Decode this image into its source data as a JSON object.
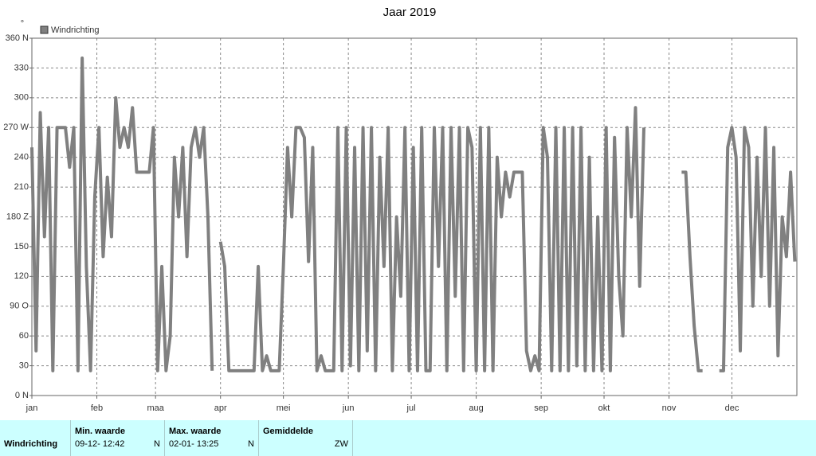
{
  "chart_data": {
    "type": "line",
    "title": "Jaar 2019",
    "ylabel": "°",
    "xlim": [
      0,
      365
    ],
    "ylim": [
      0,
      360
    ],
    "xticks": [
      {
        "value": 0,
        "label": "jan"
      },
      {
        "value": 31,
        "label": "feb"
      },
      {
        "value": 59,
        "label": "maa"
      },
      {
        "value": 90,
        "label": "apr"
      },
      {
        "value": 120,
        "label": "mei"
      },
      {
        "value": 151,
        "label": "jun"
      },
      {
        "value": 181,
        "label": "jul"
      },
      {
        "value": 212,
        "label": "aug"
      },
      {
        "value": 243,
        "label": "sep"
      },
      {
        "value": 273,
        "label": "okt"
      },
      {
        "value": 304,
        "label": "nov"
      },
      {
        "value": 334,
        "label": "dec"
      }
    ],
    "yticks": [
      {
        "value": 0,
        "label": "0 N"
      },
      30,
      60,
      {
        "value": 90,
        "label": "90 O"
      },
      120,
      150,
      {
        "value": 180,
        "label": "180 Z"
      },
      210,
      240,
      {
        "value": 270,
        "label": "270 W"
      },
      300,
      330,
      {
        "value": 360,
        "label": "360 N"
      }
    ],
    "grid": true,
    "legend": "top-left",
    "x": [
      0,
      2,
      4,
      6,
      8,
      10,
      12,
      14,
      16,
      18,
      20,
      22,
      24,
      26,
      28,
      30,
      32,
      34,
      36,
      38,
      40,
      42,
      44,
      46,
      48,
      50,
      52,
      54,
      56,
      58,
      60,
      62,
      64,
      66,
      68,
      70,
      72,
      74,
      76,
      78,
      80,
      82,
      84,
      86,
      88,
      90,
      92,
      94,
      96,
      98,
      100,
      102,
      104,
      106,
      108,
      110,
      112,
      114,
      116,
      118,
      120,
      122,
      124,
      126,
      128,
      130,
      132,
      134,
      136,
      138,
      140,
      142,
      144,
      146,
      148,
      150,
      152,
      154,
      156,
      158,
      160,
      162,
      164,
      166,
      168,
      170,
      172,
      174,
      176,
      178,
      180,
      182,
      184,
      186,
      188,
      190,
      192,
      194,
      196,
      198,
      200,
      202,
      204,
      206,
      208,
      210,
      212,
      214,
      216,
      218,
      220,
      222,
      224,
      226,
      228,
      230,
      232,
      234,
      236,
      238,
      240,
      242,
      244,
      246,
      248,
      250,
      252,
      254,
      256,
      258,
      260,
      262,
      264,
      266,
      268,
      270,
      272,
      274,
      276,
      278,
      280,
      282,
      284,
      286,
      288,
      290,
      292,
      294,
      296,
      298,
      300,
      302,
      304,
      306,
      308,
      310,
      312,
      314,
      316,
      318,
      320,
      322,
      324,
      326,
      328,
      330,
      332,
      334,
      336,
      338,
      340,
      342,
      344,
      346,
      348,
      350,
      352,
      354,
      356,
      358,
      360,
      362,
      364
    ],
    "series": [
      {
        "name": "Windrichting",
        "color": "#808080",
        "values": [
          250,
          45,
          285,
          160,
          270,
          25,
          270,
          270,
          270,
          230,
          270,
          25,
          340,
          130,
          25,
          200,
          270,
          140,
          220,
          160,
          300,
          250,
          270,
          250,
          290,
          225,
          225,
          225,
          225,
          270,
          25,
          130,
          25,
          60,
          240,
          180,
          250,
          140,
          250,
          270,
          240,
          270,
          180,
          25,
          null,
          155,
          130,
          25,
          25,
          25,
          25,
          25,
          25,
          25,
          130,
          25,
          40,
          25,
          25,
          25,
          130,
          250,
          180,
          270,
          270,
          260,
          135,
          250,
          25,
          40,
          25,
          25,
          25,
          270,
          25,
          270,
          30,
          250,
          25,
          270,
          45,
          270,
          25,
          240,
          130,
          270,
          25,
          180,
          100,
          270,
          25,
          250,
          25,
          270,
          25,
          25,
          270,
          130,
          270,
          25,
          270,
          100,
          270,
          25,
          270,
          250,
          25,
          270,
          25,
          270,
          25,
          240,
          180,
          225,
          200,
          225,
          225,
          225,
          45,
          25,
          40,
          25,
          270,
          240,
          25,
          270,
          25,
          270,
          25,
          270,
          30,
          270,
          25,
          240,
          25,
          180,
          25,
          270,
          25,
          260,
          120,
          60,
          270,
          180,
          290,
          110,
          270,
          null,
          null,
          null,
          null,
          null,
          null,
          null,
          null,
          225,
          225,
          140,
          70,
          25,
          25,
          null,
          null,
          null,
          25,
          25,
          250,
          270,
          240,
          45,
          270,
          250,
          90,
          240,
          120,
          270,
          90,
          250,
          40,
          180,
          140,
          225,
          135
        ]
      }
    ]
  },
  "table": {
    "row_label": "Windrichting",
    "columns": [
      {
        "header": "Min. waarde",
        "value": "09-12- 12:42",
        "dir": "N"
      },
      {
        "header": "Max. waarde",
        "value": "02-01- 13:25",
        "dir": "N"
      },
      {
        "header": "Gemiddelde",
        "dir": "ZW"
      }
    ]
  }
}
